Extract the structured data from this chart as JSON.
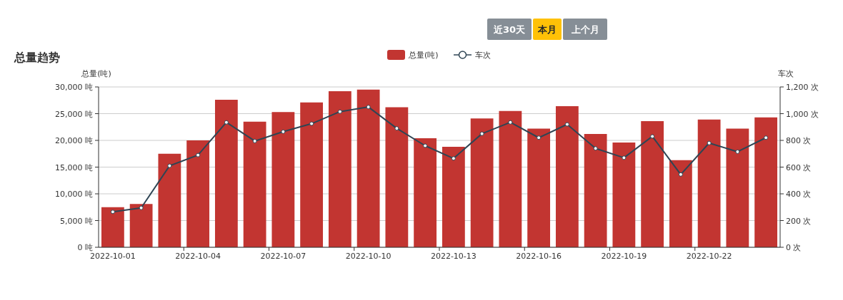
{
  "chart_data": {
    "type": "bar",
    "title": "总量趋势",
    "ylabel": "总量(吨)",
    "y2label": "车次",
    "annotations": [
      "近30天",
      "本月",
      "上个月"
    ],
    "categories": [
      "2022-10-01",
      null,
      null,
      "2022-10-04",
      null,
      null,
      "2022-10-07",
      null,
      null,
      "2022-10-10",
      null,
      null,
      "2022-10-13",
      null,
      null,
      "2022-10-16",
      null,
      null,
      "2022-10-19",
      null,
      null,
      "2022-10-22",
      null,
      null
    ],
    "series": [
      {
        "name": "总量(吨)",
        "color": "#c23531",
        "values": [
          7500,
          8100,
          17500,
          20000,
          27600,
          23500,
          25300,
          27100,
          29200,
          29500,
          26200,
          20400,
          18800,
          24100,
          25500,
          22200,
          26400,
          21200,
          19600,
          23600,
          16300,
          23900,
          22200,
          24300
        ]
      },
      {
        "name": "车次",
        "type": "line",
        "axis": "y2",
        "color": "#2f4554",
        "marker": "circle",
        "values": [
          265,
          295,
          610,
          690,
          935,
          795,
          865,
          925,
          1015,
          1050,
          890,
          760,
          665,
          850,
          935,
          820,
          920,
          740,
          670,
          830,
          545,
          780,
          715,
          820
        ]
      }
    ],
    "ylim": [
      0,
      30000
    ],
    "yticks": [
      {
        "value": 0,
        "label": "0 吨"
      },
      {
        "value": 5000,
        "label": "5,000 吨"
      },
      {
        "value": 10000,
        "label": "10,000 吨"
      },
      {
        "value": 15000,
        "label": "15,000 吨"
      },
      {
        "value": 20000,
        "label": "20,000 吨"
      },
      {
        "value": 25000,
        "label": "25,000 吨"
      },
      {
        "value": 30000,
        "label": "30,000 吨"
      }
    ],
    "y2lim": [
      0,
      1200
    ],
    "y2ticks": [
      {
        "value": 0,
        "label": "0 次"
      },
      {
        "value": 200,
        "label": "200 次"
      },
      {
        "value": 400,
        "label": "400 次"
      },
      {
        "value": 600,
        "label": "600 次"
      },
      {
        "value": 800,
        "label": "800 次"
      },
      {
        "value": 1000,
        "label": "1,000 次"
      },
      {
        "value": 1200,
        "label": "1,200 次"
      }
    ],
    "grid": "y",
    "legend": "top"
  }
}
